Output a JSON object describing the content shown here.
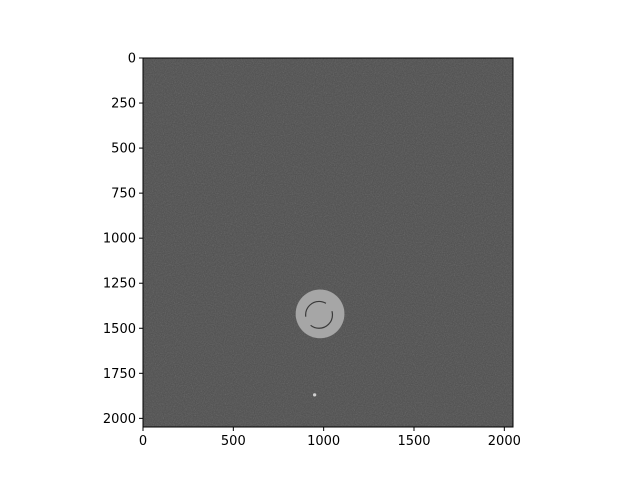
{
  "chart_data": {
    "type": "heatmap",
    "title": "",
    "xlabel": "",
    "ylabel": "",
    "xlim": [
      0,
      2048
    ],
    "ylim": [
      2048,
      0
    ],
    "y_inverted": true,
    "xticks": [
      0,
      500,
      1000,
      1500,
      2000
    ],
    "yticks": [
      0,
      250,
      500,
      750,
      1000,
      1250,
      1500,
      1750,
      2000
    ],
    "colormap": "gray",
    "grid": false,
    "colors": {
      "background": "#4e4e4e",
      "feature": "#a6a6a6",
      "feature_edge": "#3a3a3a",
      "speck": "#d0d0d0"
    },
    "features": [
      {
        "name": "bright-disk",
        "cx": 980,
        "cy": 1420,
        "r": 135
      },
      {
        "name": "bright-speck",
        "cx": 950,
        "cy": 1870,
        "r": 9
      }
    ]
  }
}
